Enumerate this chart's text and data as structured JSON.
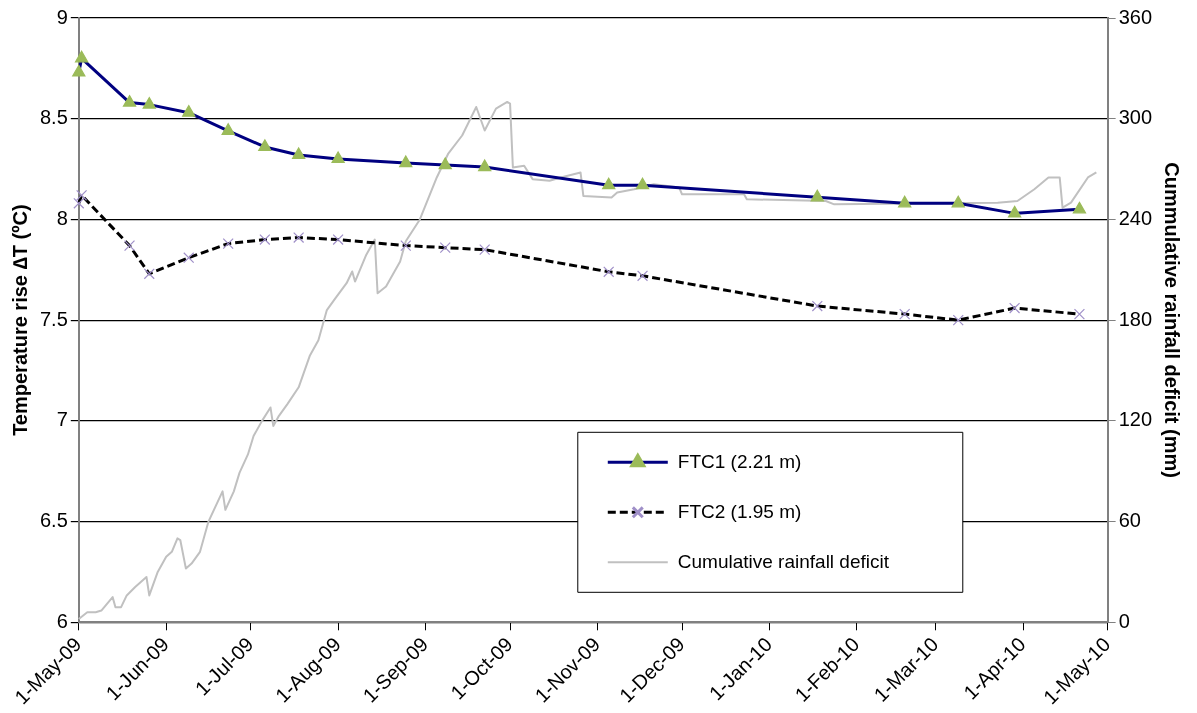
{
  "chart_data": {
    "type": "line",
    "ylabel": "Temperature rise ∆T (ºC)",
    "y2label": "Cummulative rainfall deficit (mm)",
    "xlim": [
      "2009-05-01",
      "2010-05-01"
    ],
    "xticks": [
      {
        "value": "2009-05-01",
        "label": "1-May-09"
      },
      {
        "value": "2009-06-01",
        "label": "1-Jun-09"
      },
      {
        "value": "2009-07-01",
        "label": "1-Jul-09"
      },
      {
        "value": "2009-08-01",
        "label": "1-Aug-09"
      },
      {
        "value": "2009-09-01",
        "label": "1-Sep-09"
      },
      {
        "value": "2009-10-01",
        "label": "1-Oct-09"
      },
      {
        "value": "2009-11-01",
        "label": "1-Nov-09"
      },
      {
        "value": "2009-12-01",
        "label": "1-Dec-09"
      },
      {
        "value": "2010-01-01",
        "label": "1-Jan-10"
      },
      {
        "value": "2010-02-01",
        "label": "1-Feb-10"
      },
      {
        "value": "2010-03-01",
        "label": "1-Mar-10"
      },
      {
        "value": "2010-04-01",
        "label": "1-Apr-10"
      },
      {
        "value": "2010-05-01",
        "label": "1-May-10"
      }
    ],
    "ylim": [
      6,
      9
    ],
    "yticks": [
      6,
      6.5,
      7,
      7.5,
      8,
      8.5,
      9
    ],
    "y2lim": [
      0,
      360
    ],
    "y2ticks": [
      0,
      60,
      120,
      180,
      240,
      300,
      360
    ],
    "grid": "y",
    "legend": "bottom right",
    "series": [
      {
        "name": "FTC1 (2.21 m)",
        "color": "#000080",
        "colors": [
          "#9bbb59",
          "#9bbb59",
          "#9bbb59",
          "#9bbb59",
          "#9bbb59",
          "#9bbb59",
          "#9bbb59",
          "#9bbb59",
          "#9bbb59",
          "#9bbb59",
          "#9bbb59",
          "#9bbb59",
          "#9bbb59",
          "#9bbb59",
          "#9bbb59",
          "#9bbb59",
          "#9bbb59",
          "#9bbb59",
          "#9bbb59"
        ],
        "marker": "triangle",
        "line_style": "solid",
        "x": [
          "2009-05-01",
          "2009-05-02",
          "2009-05-19",
          "2009-05-26",
          "2009-06-09",
          "2009-06-23",
          "2009-07-06",
          "2009-07-18",
          "2009-08-01",
          "2009-08-25",
          "2009-09-08",
          "2009-09-22",
          "2009-11-05",
          "2009-11-17",
          "2010-01-18",
          "2010-02-18",
          "2010-03-09",
          "2010-03-29",
          "2010-04-21"
        ],
        "values": [
          8.73,
          8.8,
          8.58,
          8.57,
          8.53,
          8.44,
          8.36,
          8.32,
          8.3,
          8.28,
          8.27,
          8.26,
          8.17,
          8.17,
          8.11,
          8.08,
          8.08,
          8.03,
          8.05
        ]
      },
      {
        "name": "FTC2 (1.95 m)",
        "color": "#000000",
        "colors": [
          "#9f8fc8",
          "#9f8fc8",
          "#9f8fc8",
          "#9f8fc8",
          "#9f8fc8",
          "#9f8fc8",
          "#9f8fc8",
          "#9f8fc8",
          "#9f8fc8",
          "#9f8fc8",
          "#9f8fc8",
          "#9f8fc8",
          "#9f8fc8",
          "#9f8fc8",
          "#9f8fc8",
          "#9f8fc8",
          "#9f8fc8",
          "#9f8fc8",
          "#9f8fc8"
        ],
        "marker": "cross",
        "line_style": "dashed",
        "x": [
          "2009-05-01",
          "2009-05-02",
          "2009-05-19",
          "2009-05-26",
          "2009-06-09",
          "2009-06-23",
          "2009-07-06",
          "2009-07-18",
          "2009-08-01",
          "2009-08-25",
          "2009-09-08",
          "2009-09-22",
          "2009-11-05",
          "2009-11-17",
          "2010-01-18",
          "2010-02-18",
          "2010-03-09",
          "2010-03-29",
          "2010-04-21"
        ],
        "values": [
          8.08,
          8.12,
          7.87,
          7.73,
          7.81,
          7.88,
          7.9,
          7.91,
          7.9,
          7.87,
          7.86,
          7.85,
          7.74,
          7.72,
          7.57,
          7.53,
          7.5,
          7.56,
          7.53
        ]
      },
      {
        "name": "Cumulative rainfall deficit",
        "color": "#c0c0c0",
        "marker": "none",
        "line_style": "solid",
        "axis": "y2",
        "x": [
          "2009-05-01",
          "2009-05-04",
          "2009-05-07",
          "2009-05-09",
          "2009-05-13",
          "2009-05-14",
          "2009-05-16",
          "2009-05-18",
          "2009-05-21",
          "2009-05-25",
          "2009-05-26",
          "2009-05-29",
          "2009-06-01",
          "2009-06-03",
          "2009-06-05",
          "2009-06-06",
          "2009-06-08",
          "2009-06-10",
          "2009-06-13",
          "2009-06-16",
          "2009-06-21",
          "2009-06-22",
          "2009-06-25",
          "2009-06-27",
          "2009-06-30",
          "2009-07-02",
          "2009-07-05",
          "2009-07-08",
          "2009-07-09",
          "2009-07-11",
          "2009-07-14",
          "2009-07-18",
          "2009-07-22",
          "2009-07-25",
          "2009-07-28",
          "2009-07-31",
          "2009-08-04",
          "2009-08-06",
          "2009-08-07",
          "2009-08-11",
          "2009-08-14",
          "2009-08-15",
          "2009-08-18",
          "2009-08-23",
          "2009-08-25",
          "2009-08-30",
          "2009-09-05",
          "2009-09-09",
          "2009-09-14",
          "2009-09-19",
          "2009-09-22",
          "2009-09-26",
          "2009-09-30",
          "2009-10-01",
          "2009-10-02",
          "2009-10-06",
          "2009-10-09",
          "2009-10-15",
          "2009-10-19",
          "2009-10-26",
          "2009-10-27",
          "2009-11-06",
          "2009-11-08",
          "2009-11-14",
          "2009-11-21",
          "2009-11-30",
          "2009-12-01",
          "2009-12-23",
          "2009-12-24",
          "2010-01-21",
          "2010-01-24",
          "2010-03-23",
          "2010-03-30",
          "2010-04-05",
          "2010-04-10",
          "2010-04-14",
          "2010-04-15",
          "2010-04-18",
          "2010-04-24",
          "2010-04-27"
        ],
        "values": [
          2,
          6,
          6,
          7,
          15,
          9,
          9,
          16,
          21,
          27,
          16,
          30,
          39,
          42,
          50,
          49,
          32,
          35,
          42,
          60,
          78,
          67,
          78,
          89,
          100,
          111,
          120,
          128,
          117,
          123,
          130,
          140,
          159,
          168,
          186,
          193,
          202,
          209,
          203,
          219,
          228,
          196,
          200,
          215,
          227,
          240,
          265,
          279,
          290,
          307,
          293,
          306,
          310,
          309,
          271,
          272,
          264,
          263,
          265,
          268,
          254,
          253,
          256,
          258,
          261,
          259,
          255,
          255,
          252,
          251,
          249,
          250,
          251,
          258,
          265,
          265,
          247,
          250,
          265,
          268
        ]
      }
    ]
  }
}
